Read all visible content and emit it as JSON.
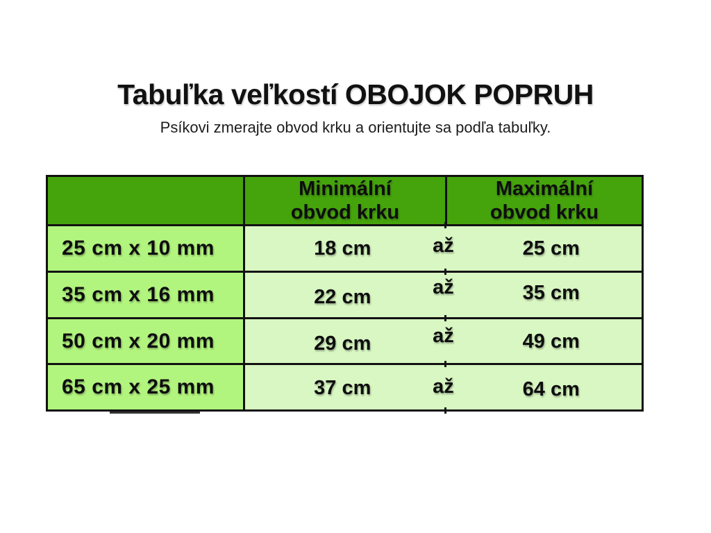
{
  "title": "Tabuľka veľkostí OBOJOK POPRUH",
  "subtitle": "Psíkovi zmerajte obvod krku a orientujte sa podľa tabuľky.",
  "table": {
    "header": {
      "blank": "",
      "min": "Minimální\nobvod krku",
      "max": "Maximální\nobvod krku"
    },
    "range_word": "až",
    "rows": [
      {
        "size": "25 cm x 10 mm",
        "min": "18 cm",
        "max": "25 cm"
      },
      {
        "size": "35 cm x 16 mm",
        "min": "22 cm",
        "max": "35 cm"
      },
      {
        "size": "50 cm x 20 mm",
        "min": "29 cm",
        "max": "49 cm"
      },
      {
        "size": "65 cm x 25 mm",
        "min": "37 cm",
        "max": "64 cm"
      }
    ]
  },
  "colors": {
    "header_bg": "#45a40b",
    "label_bg": "#b2f57e",
    "cell_bg": "#d8f7c2",
    "border": "#111111",
    "text": "#111111",
    "page_bg": "#ffffff"
  },
  "chart_data": {
    "type": "table",
    "title": "Tabuľka veľkostí OBOJOK POPRUH",
    "subtitle": "Psíkovi zmerajte obvod krku a orientujte sa podľa tabuľky.",
    "columns": [
      "",
      "Minimální obvod krku",
      "Maximální obvod krku"
    ],
    "range_word": "až",
    "rows": [
      {
        "size": "25 cm x 10 mm",
        "min_cm": 18,
        "max_cm": 25
      },
      {
        "size": "35 cm x 16 mm",
        "min_cm": 22,
        "max_cm": 35
      },
      {
        "size": "50 cm x 20 mm",
        "min_cm": 29,
        "max_cm": 49
      },
      {
        "size": "65 cm x 25 mm",
        "min_cm": 37,
        "max_cm": 64
      }
    ]
  }
}
